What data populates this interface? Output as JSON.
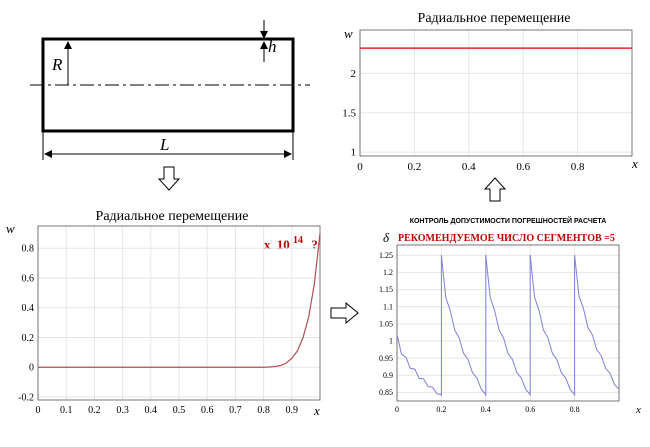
{
  "diagram": {
    "labels": {
      "R": "R",
      "h": "h",
      "L": "L"
    }
  },
  "colors": {
    "red_line": "#d42a2a",
    "brown_line": "#b05050",
    "blue_line": "#7f7fd8",
    "red_text": "#c00000",
    "grid": "#e6e6e6",
    "axis": "#333333"
  },
  "chart_data": [
    {
      "id": "top-right",
      "type": "line",
      "title": "Радиальное перемещение",
      "xlabel": "x",
      "ylabel": "w",
      "xlim": [
        0,
        1
      ],
      "ylim": [
        0.95,
        2.55
      ],
      "xticks": [
        0,
        0.2,
        0.4,
        0.6,
        0.8
      ],
      "xtick_labels": [
        "0",
        "0.2",
        "0.4",
        "0.6",
        "0.8"
      ],
      "yticks": [
        1,
        1.5,
        2
      ],
      "ytick_labels": [
        "1",
        "1.5",
        "2"
      ],
      "grid": true,
      "series": [
        {
          "color": "#d42a2a",
          "x": [
            0,
            1
          ],
          "y": [
            2.32,
            2.32
          ]
        }
      ]
    },
    {
      "id": "bottom-left",
      "type": "line",
      "title": "Радиальное перемещение",
      "xlabel": "x",
      "ylabel": "w",
      "xlim": [
        0,
        1
      ],
      "ylim": [
        -0.22,
        0.95
      ],
      "xticks": [
        0,
        0.1,
        0.2,
        0.3,
        0.4,
        0.5,
        0.6,
        0.7,
        0.8,
        0.9
      ],
      "xtick_labels": [
        "0",
        "0.1",
        "0.2",
        "0.3",
        "0.4",
        "0.5",
        "0.6",
        "0.7",
        "0.8",
        "0.9"
      ],
      "yticks": [
        -0.2,
        0,
        0.2,
        0.4,
        0.6,
        0.8
      ],
      "ytick_labels": [
        "-0.2",
        "0",
        "0.2",
        "0.4",
        "0.6",
        "0.8"
      ],
      "grid": true,
      "annotation": {
        "prefix": "x",
        "base": "10",
        "exponent": "14",
        "suffix": "?"
      },
      "series": [
        {
          "color": "#b05050",
          "x": [
            0,
            0.8,
            0.82,
            0.84,
            0.86,
            0.88,
            0.9,
            0.92,
            0.94,
            0.96,
            0.98,
            1.0
          ],
          "y": [
            0,
            0,
            0.002,
            0.005,
            0.012,
            0.028,
            0.06,
            0.11,
            0.2,
            0.34,
            0.56,
            0.9
          ]
        }
      ]
    },
    {
      "id": "bottom-right",
      "type": "line",
      "title": "КОНТРОЛЬ ДОПУСТИМОСТИ ПОГРЕШНОСТЕЙ РАСЧЕТА",
      "subtitle": "РЕКОМЕНДУЕМОЕ ЧИСЛО СЕГМЕНТОВ =5",
      "xlabel": "x",
      "ylabel": "δ",
      "xlim": [
        0,
        1
      ],
      "ylim": [
        0.825,
        1.28
      ],
      "xticks": [
        0,
        0.2,
        0.4,
        0.6,
        0.8
      ],
      "xtick_labels": [
        "0",
        "0.2",
        "0.4",
        "0.6",
        "0.8"
      ],
      "yticks": [
        0.85,
        0.9,
        0.95,
        1,
        1.05,
        1.1,
        1.15,
        1.2,
        1.25
      ],
      "ytick_labels": [
        "0.85",
        "0.9",
        "0.95",
        "1",
        "1.05",
        "1.1",
        "1.15",
        "1.2",
        "1.25"
      ],
      "grid": true,
      "segments": [
        {
          "x_start": 0,
          "x_end": 0.2,
          "y_start": 1.02,
          "y_end": 0.84
        },
        {
          "x_start": 0.2,
          "x_end": 0.4,
          "y_start": 1.25,
          "y_end": 0.84
        },
        {
          "x_start": 0.4,
          "x_end": 0.6,
          "y_start": 1.25,
          "y_end": 0.84
        },
        {
          "x_start": 0.6,
          "x_end": 0.8,
          "y_start": 1.25,
          "y_end": 0.84
        },
        {
          "x_start": 0.8,
          "x_end": 1.0,
          "y_start": 1.25,
          "y_end": 0.855
        }
      ]
    }
  ]
}
